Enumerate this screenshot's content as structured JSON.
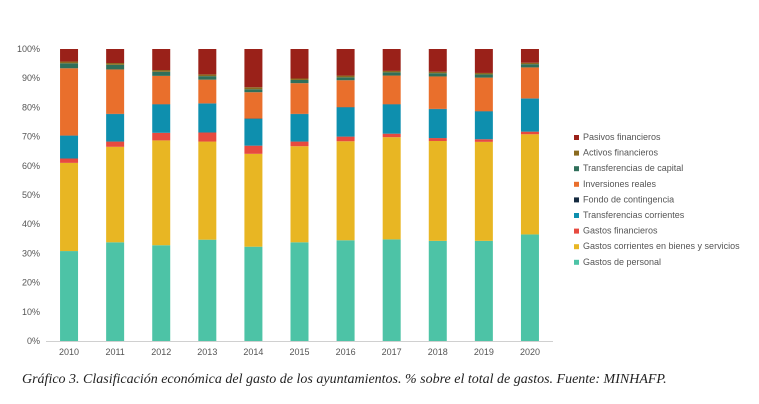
{
  "caption": "Gráfico 3. Clasificación económica del gasto de los ayuntamientos. % sobre el total de gastos. Fuente: MINHAFP.",
  "chart_data": {
    "type": "bar",
    "stacked": true,
    "percent": true,
    "categories": [
      "2010",
      "2011",
      "2012",
      "2013",
      "2014",
      "2015",
      "2016",
      "2017",
      "2018",
      "2019",
      "2020"
    ],
    "ylim": [
      0,
      100
    ],
    "yticks": [
      "0%",
      "10%",
      "20%",
      "30%",
      "40%",
      "50%",
      "60%",
      "70%",
      "80%",
      "90%",
      "100%"
    ],
    "grid": false,
    "legend_position": "right",
    "series": [
      {
        "name": "Gastos de personal",
        "color": "#4dc3a6",
        "values": [
          30.8,
          33.8,
          32.8,
          34.7,
          32.3,
          33.8,
          34.5,
          34.8,
          34.3,
          34.3,
          36.5
        ]
      },
      {
        "name": "Gastos corrientes en bienes y servicios",
        "color": "#e8b623",
        "values": [
          30.2,
          32.7,
          35.9,
          33.6,
          31.8,
          32.9,
          33.9,
          35.0,
          34.2,
          33.9,
          34.3
        ]
      },
      {
        "name": "Gastos financieros",
        "color": "#e74a3f",
        "values": [
          1.5,
          1.8,
          2.6,
          3.1,
          2.8,
          1.6,
          1.6,
          1.2,
          1.0,
          0.9,
          0.9
        ]
      },
      {
        "name": "Transferencias corrientes",
        "color": "#0e8fae",
        "values": [
          7.8,
          9.4,
          9.7,
          9.9,
          9.2,
          9.4,
          10.0,
          10.0,
          9.9,
          9.5,
          11.3
        ]
      },
      {
        "name": "Fondo de contingencia",
        "color": "#152a3f",
        "values": [
          0.1,
          0.1,
          0.1,
          0.1,
          0.1,
          0.1,
          0.1,
          0.1,
          0.1,
          0.1,
          0.1
        ]
      },
      {
        "name": "Inversiones reales",
        "color": "#e96f2c",
        "values": [
          23.0,
          15.2,
          9.7,
          8.1,
          9.0,
          10.5,
          9.2,
          9.8,
          11.1,
          11.5,
          10.6
        ]
      },
      {
        "name": "Transferencias de capital",
        "color": "#2f6f5a",
        "values": [
          1.7,
          1.6,
          1.4,
          1.2,
          1.0,
          1.1,
          1.0,
          1.1,
          1.1,
          1.1,
          1.1
        ]
      },
      {
        "name": "Activos financieros",
        "color": "#8a6a1f",
        "values": [
          0.6,
          0.6,
          0.6,
          0.6,
          0.7,
          0.5,
          0.6,
          0.5,
          0.5,
          0.5,
          0.5
        ]
      },
      {
        "name": "Pasivos financieros",
        "color": "#9a2119",
        "values": [
          4.3,
          4.8,
          7.2,
          8.7,
          13.1,
          10.1,
          9.1,
          7.5,
          7.8,
          8.2,
          4.7
        ]
      }
    ]
  }
}
